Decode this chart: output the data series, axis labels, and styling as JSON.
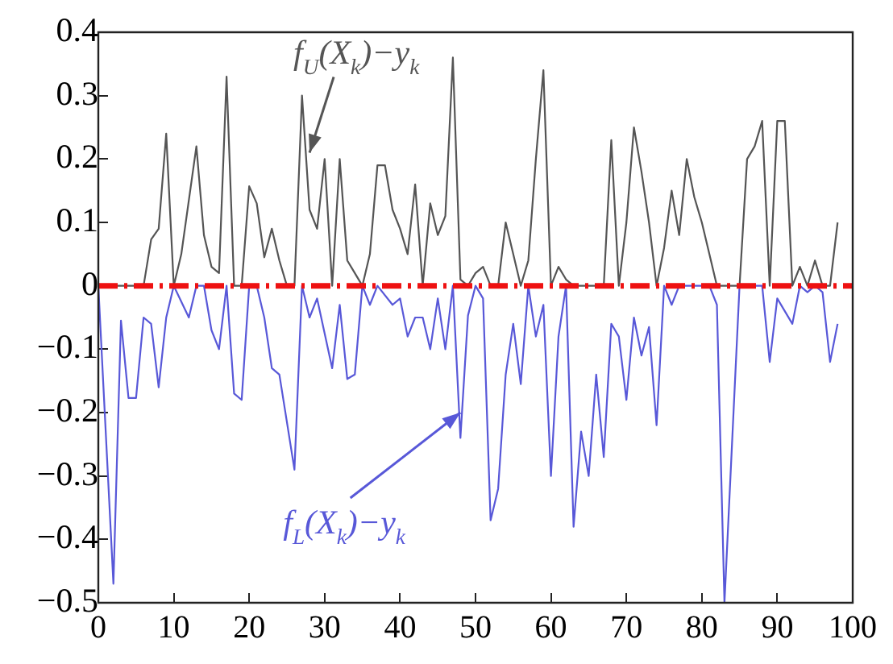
{
  "chart_data": {
    "type": "line",
    "xlim": [
      0,
      100
    ],
    "xticks": [
      0,
      10,
      20,
      30,
      40,
      50,
      60,
      70,
      80,
      90,
      100
    ],
    "ylim": [
      -0.5,
      0.4
    ],
    "yticks": [
      -0.5,
      -0.4,
      -0.3,
      -0.2,
      -0.1,
      0,
      0.1,
      0.2,
      0.3,
      0.4
    ],
    "grid": false,
    "legend": false,
    "marker": "none",
    "line_style": "solid",
    "series": [
      {
        "color": "#555555",
        "x": [
          1,
          2,
          3,
          4,
          5,
          6,
          7,
          8,
          9,
          10,
          11,
          13,
          14,
          15,
          16,
          17,
          18,
          19,
          20,
          21,
          22,
          23,
          24,
          25,
          26,
          27,
          28,
          29,
          30,
          31,
          32,
          33,
          34,
          35,
          36,
          37,
          38,
          39,
          40,
          41,
          42,
          43,
          44,
          45,
          46,
          47,
          48,
          49,
          50,
          51,
          52,
          53,
          54,
          55,
          56,
          57,
          58,
          59,
          60,
          61,
          62,
          63,
          64,
          65,
          66,
          67,
          68,
          69,
          70,
          71,
          72,
          73,
          74,
          75,
          76,
          77,
          78,
          79,
          80,
          81,
          82,
          83,
          84,
          85,
          86,
          87,
          88,
          89,
          90,
          91,
          92,
          93,
          94,
          95,
          96,
          97,
          98
        ],
        "values": [
          0,
          0,
          0,
          0,
          0,
          0,
          0.073,
          0.09,
          0.24,
          0,
          0.05,
          0.22,
          0.08,
          0.03,
          0.02,
          0.33,
          0,
          0,
          0.157,
          0.13,
          0.045,
          0.09,
          0.04,
          0,
          0,
          0.3,
          0.12,
          0.09,
          0.2,
          0,
          0.2,
          0.04,
          0.02,
          0,
          0.05,
          0.19,
          0.19,
          0.12,
          0.09,
          0.05,
          0.16,
          0,
          0.13,
          0.08,
          0.11,
          0.36,
          0.01,
          0,
          0.02,
          0.03,
          0,
          0,
          0.1,
          0.05,
          0,
          0.04,
          0.2,
          0.34,
          0,
          0.03,
          0.01,
          0,
          0,
          0,
          0,
          0,
          0.23,
          0,
          0.1,
          0.25,
          0.18,
          0.1,
          0,
          0.06,
          0.15,
          0.08,
          0.2,
          0.14,
          0.1,
          0.05,
          0,
          0,
          0,
          0,
          0.2,
          0.22,
          0.26,
          0,
          0.26,
          0.26,
          0,
          0.03,
          0,
          0.04,
          0,
          0,
          0.1
        ]
      },
      {
        "color": "#5858d8",
        "x": [
          0,
          2,
          3,
          4,
          5,
          6,
          7,
          8,
          9,
          10,
          12,
          13,
          14,
          15,
          16,
          17,
          18,
          19,
          20,
          21,
          22,
          23,
          24,
          26,
          27,
          28,
          29,
          31,
          32,
          33,
          34,
          35,
          36,
          37,
          39,
          40,
          41,
          42,
          43,
          44,
          45,
          46,
          47,
          48,
          49,
          50,
          51,
          52,
          53,
          54,
          55,
          56,
          57,
          58,
          59,
          60,
          61,
          62,
          63,
          64,
          65,
          66,
          67,
          68,
          69,
          70,
          71,
          72,
          73,
          74,
          75,
          76,
          77,
          78,
          80,
          81,
          82,
          83,
          84,
          85,
          86,
          88,
          89,
          90,
          91,
          92,
          93,
          94,
          95,
          96,
          97,
          98
        ],
        "values": [
          0,
          -0.47,
          -0.055,
          -0.177,
          -0.177,
          -0.05,
          -0.06,
          -0.16,
          -0.05,
          0,
          -0.05,
          0,
          0,
          -0.07,
          -0.1,
          0,
          -0.17,
          -0.18,
          0,
          0,
          -0.05,
          -0.13,
          -0.14,
          -0.29,
          0,
          -0.05,
          -0.02,
          -0.13,
          -0.03,
          -0.147,
          -0.14,
          0,
          -0.03,
          0,
          -0.03,
          -0.02,
          -0.08,
          -0.05,
          -0.05,
          -0.1,
          -0.02,
          -0.1,
          0,
          -0.24,
          -0.047,
          0,
          -0.02,
          -0.37,
          -0.32,
          -0.14,
          -0.06,
          -0.155,
          0,
          -0.08,
          -0.03,
          -0.3,
          -0.08,
          0,
          -0.38,
          -0.23,
          -0.3,
          -0.14,
          -0.27,
          -0.06,
          -0.08,
          -0.18,
          -0.05,
          -0.11,
          -0.065,
          -0.22,
          0,
          -0.03,
          0,
          0,
          0,
          0,
          -0.03,
          -0.5,
          -0.25,
          0,
          0,
          0,
          -0.12,
          -0.02,
          -0.04,
          -0.06,
          0,
          -0.01,
          0,
          -0.01,
          -0.12,
          -0.06
        ]
      }
    ],
    "ref_lines": [
      {
        "axis": "y",
        "value": 0,
        "color": "#ee1111",
        "line_style": "dashdot"
      }
    ],
    "annotations": [
      {
        "text": "f$_{U}$(X$_{k}$)−y$_{k}$",
        "x": 28,
        "y": 0.21
      },
      {
        "text": "f$_{L}$(X$_{k}$)−y$_{k}$",
        "x": 48,
        "y": -0.2
      }
    ]
  }
}
